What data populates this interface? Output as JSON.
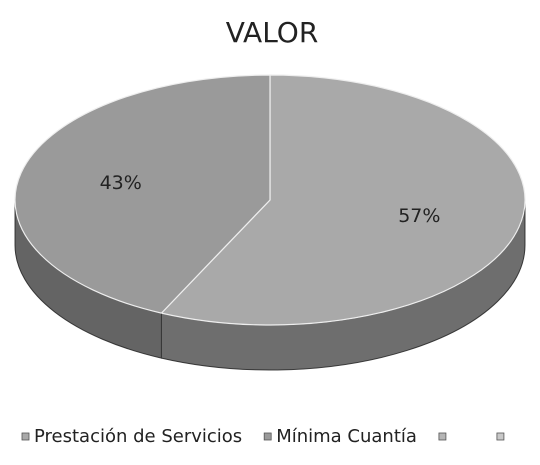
{
  "chart_data": {
    "type": "pie",
    "title": "VALOR",
    "categories": [
      "Prestación de Servicios",
      "Mínima Cuantía",
      null,
      null
    ],
    "values": [
      57,
      43,
      0,
      0
    ],
    "value_labels": [
      "57%",
      "43%",
      null,
      null
    ],
    "colors": [
      "#a9a9a9",
      "#9a9a9a",
      "#b5b5b5",
      "#c8c8c8"
    ],
    "legend": "bottom"
  }
}
